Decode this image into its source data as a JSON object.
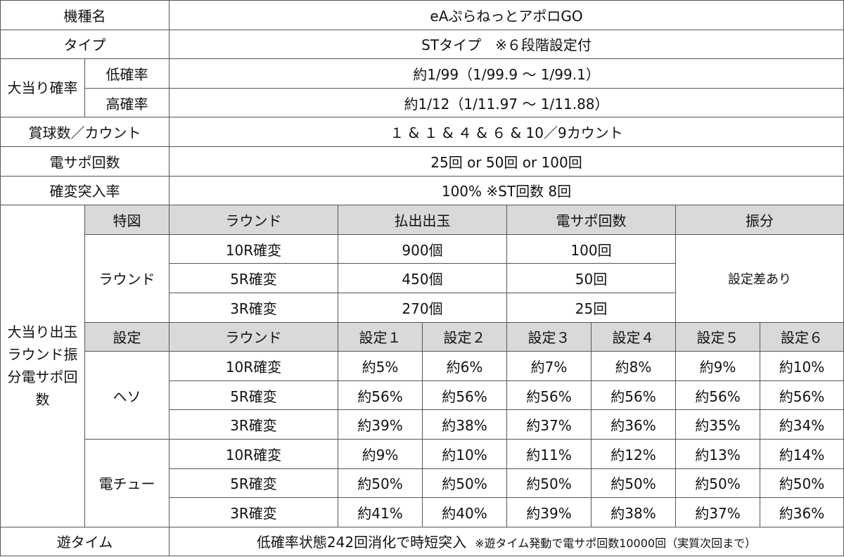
{
  "machine_name": {
    "label": "機種名",
    "value": "eAぷらねっとアポロGO"
  },
  "type": {
    "label": "タイプ",
    "value": "STタイプ　※６段階設定付"
  },
  "probability": {
    "label": "大当り確率",
    "low_label": "低確率",
    "low_value": "約1/99（1/99.9 ～ 1/99.1）",
    "high_label": "高確率",
    "high_value": "約1/12（1/11.97 ～ 1/11.88）"
  },
  "prize_balls": {
    "label": "賞球数／カウント",
    "value": "１ & １ & ４ & ６ & 10／9カウント"
  },
  "densapo": {
    "label": "電サポ回数",
    "value": "25回 or 50回 or 100回"
  },
  "kakuhen_rate": {
    "label": "確変突入率",
    "value": "100%  ※ST回数 8回"
  },
  "payout": {
    "label": "大当り出玉ラウンド振分電サポ回数",
    "header": {
      "tokuzu": "特図",
      "round": "ラウンド",
      "payout": "払出出玉",
      "densapo": "電サポ回数",
      "split": "振分"
    },
    "group_label": "ラウンド",
    "split_value": "設定差あり",
    "rows": [
      {
        "round": "10R確変",
        "payout": "900個",
        "densapo": "100回"
      },
      {
        "round": "5R確変",
        "payout": "450個",
        "densapo": "50回"
      },
      {
        "round": "3R確変",
        "payout": "270個",
        "densapo": "25回"
      }
    ]
  },
  "settings": {
    "header": {
      "setting": "設定",
      "round": "ラウンド",
      "cols": [
        "設定１",
        "設定２",
        "設定３",
        "設定４",
        "設定５",
        "設定６"
      ]
    },
    "heso": {
      "label": "ヘソ",
      "rows": [
        {
          "round": "10R確変",
          "values": [
            "約5%",
            "約6%",
            "約7%",
            "約8%",
            "約9%",
            "約10%"
          ]
        },
        {
          "round": "5R確変",
          "values": [
            "約56%",
            "約56%",
            "約56%",
            "約56%",
            "約56%",
            "約56%"
          ]
        },
        {
          "round": "3R確変",
          "values": [
            "約39%",
            "約38%",
            "約37%",
            "約36%",
            "約35%",
            "約34%"
          ]
        }
      ]
    },
    "dench": {
      "label": "電チュー",
      "rows": [
        {
          "round": "10R確変",
          "values": [
            "約9%",
            "約10%",
            "約11%",
            "約12%",
            "約13%",
            "約14%"
          ]
        },
        {
          "round": "5R確変",
          "values": [
            "約50%",
            "約50%",
            "約50%",
            "約50%",
            "約50%",
            "約50%"
          ]
        },
        {
          "round": "3R確変",
          "values": [
            "約41%",
            "約40%",
            "約39%",
            "約38%",
            "約37%",
            "約36%"
          ]
        }
      ]
    }
  },
  "asobi_time": {
    "label": "遊タイム",
    "value": "低確率状態242回消化で時短突入",
    "note": "※遊タイム発動で電サポ回数10000回（実質次回まで）"
  }
}
